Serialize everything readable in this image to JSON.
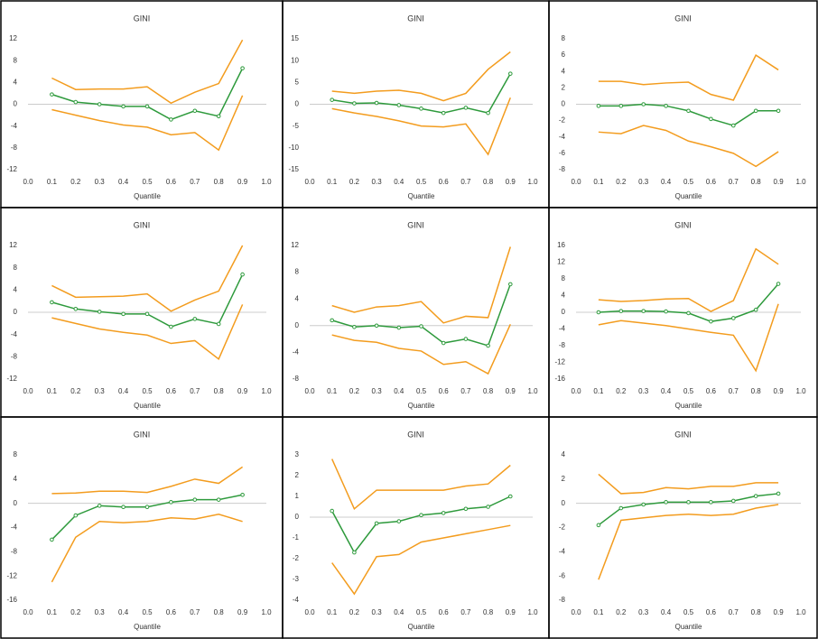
{
  "chart_data": [
    {
      "type": "line",
      "title": "GINI",
      "xlabel": "Quantile",
      "x": [
        0.1,
        0.2,
        0.3,
        0.4,
        0.5,
        0.6,
        0.7,
        0.8,
        0.9
      ],
      "xlim": [
        0,
        1
      ],
      "xticks": [
        {
          "value": 0,
          "label": "0.0"
        },
        0.1,
        0.2,
        0.3,
        0.4,
        0.5,
        0.6,
        0.7,
        0.8,
        0.9,
        {
          "value": 1,
          "label": "1.0"
        }
      ],
      "ylim": [
        -12,
        12
      ],
      "yticks": [
        12,
        8,
        4,
        0,
        -4,
        -8,
        -12
      ],
      "series": [
        {
          "color": "#f39c1e",
          "values": [
            4.8,
            2.7,
            2.8,
            2.8,
            3.2,
            0.2,
            2.2,
            3.8,
            11.8
          ]
        },
        {
          "color": "#2e9a3c",
          "values": [
            1.8,
            0.4,
            0.0,
            -0.4,
            -0.4,
            -2.8,
            -1.2,
            -2.2,
            6.6
          ]
        },
        {
          "color": "#f39c1e",
          "values": [
            -1,
            -2,
            -3,
            -3.8,
            -4.2,
            -5.6,
            -5.2,
            -8.4,
            1.6
          ]
        }
      ]
    },
    {
      "type": "line",
      "title": "GINI",
      "xlabel": "Quantile",
      "x": [
        0.1,
        0.2,
        0.3,
        0.4,
        0.5,
        0.6,
        0.7,
        0.8,
        0.9
      ],
      "xlim": [
        0,
        1
      ],
      "xticks": [
        {
          "value": 0,
          "label": "0.0"
        },
        0.1,
        0.2,
        0.3,
        0.4,
        0.5,
        0.6,
        0.7,
        0.8,
        0.9,
        {
          "value": 1,
          "label": "1.0"
        }
      ],
      "ylim": [
        -15,
        15
      ],
      "yticks": [
        15,
        10,
        5,
        0,
        -5,
        -10,
        -15
      ],
      "series": [
        {
          "color": "#f39c1e",
          "values": [
            3,
            2.5,
            3,
            3.2,
            2.5,
            0.8,
            2.5,
            8,
            12
          ]
        },
        {
          "color": "#2e9a3c",
          "values": [
            1,
            0.2,
            0.3,
            -0.2,
            -1,
            -2,
            -0.8,
            -2,
            7
          ]
        },
        {
          "color": "#f39c1e",
          "values": [
            -1,
            -2,
            -2.8,
            -3.8,
            -5,
            -5.2,
            -4.5,
            -11.5,
            1.5
          ]
        }
      ]
    },
    {
      "type": "line",
      "title": "GINI",
      "xlabel": "Quantile",
      "x": [
        0.1,
        0.2,
        0.3,
        0.4,
        0.5,
        0.6,
        0.7,
        0.8,
        0.9
      ],
      "xlim": [
        0,
        1
      ],
      "xticks": [
        {
          "value": 0,
          "label": "0.0"
        },
        0.1,
        0.2,
        0.3,
        0.4,
        0.5,
        0.6,
        0.7,
        0.8,
        0.9,
        {
          "value": 1,
          "label": "1.0"
        }
      ],
      "ylim": [
        -8,
        8
      ],
      "yticks": [
        8,
        6,
        4,
        2,
        0,
        -2,
        -4,
        -6,
        -8
      ],
      "series": [
        {
          "color": "#f39c1e",
          "values": [
            2.8,
            2.8,
            2.4,
            2.6,
            2.7,
            1.2,
            0.5,
            6,
            4.2
          ]
        },
        {
          "color": "#2e9a3c",
          "values": [
            -0.2,
            -0.2,
            0,
            -0.2,
            -0.8,
            -1.8,
            -2.6,
            -0.8,
            -0.8
          ]
        },
        {
          "color": "#f39c1e",
          "values": [
            -3.4,
            -3.6,
            -2.6,
            -3.2,
            -4.5,
            -5.2,
            -6,
            -7.6,
            -5.8
          ]
        }
      ]
    },
    {
      "type": "line",
      "title": "GINI",
      "xlabel": "Quantile",
      "x": [
        0.1,
        0.2,
        0.3,
        0.4,
        0.5,
        0.6,
        0.7,
        0.8,
        0.9
      ],
      "xlim": [
        0,
        1
      ],
      "xticks": [
        {
          "value": 0,
          "label": "0.0"
        },
        0.1,
        0.2,
        0.3,
        0.4,
        0.5,
        0.6,
        0.7,
        0.8,
        0.9,
        {
          "value": 1,
          "label": "1.0"
        }
      ],
      "ylim": [
        -12,
        12
      ],
      "yticks": [
        12,
        8,
        4,
        0,
        -4,
        -8,
        -12
      ],
      "series": [
        {
          "color": "#f39c1e",
          "values": [
            4.8,
            2.7,
            2.8,
            2.9,
            3.3,
            0.2,
            2.2,
            3.8,
            12
          ]
        },
        {
          "color": "#2e9a3c",
          "values": [
            1.8,
            0.6,
            0.1,
            -0.3,
            -0.3,
            -2.6,
            -1.2,
            -2.1,
            6.8
          ]
        },
        {
          "color": "#f39c1e",
          "values": [
            -1,
            -2,
            -3,
            -3.6,
            -4.1,
            -5.6,
            -5.1,
            -8.4,
            1.4
          ]
        }
      ]
    },
    {
      "type": "line",
      "title": "GINI",
      "xlabel": "Quantile",
      "x": [
        0.1,
        0.2,
        0.3,
        0.4,
        0.5,
        0.6,
        0.7,
        0.8,
        0.9
      ],
      "xlim": [
        0,
        1
      ],
      "xticks": [
        {
          "value": 0,
          "label": "0.0"
        },
        0.1,
        0.2,
        0.3,
        0.4,
        0.5,
        0.6,
        0.7,
        0.8,
        0.9,
        {
          "value": 1,
          "label": "1.0"
        }
      ],
      "ylim": [
        -8,
        12
      ],
      "yticks": [
        12,
        8,
        4,
        0,
        -4,
        -8
      ],
      "series": [
        {
          "color": "#f39c1e",
          "values": [
            3,
            2,
            2.8,
            3,
            3.6,
            0.4,
            1.4,
            1.2,
            11.8
          ]
        },
        {
          "color": "#2e9a3c",
          "values": [
            0.8,
            -0.2,
            0,
            -0.3,
            -0.1,
            -2.6,
            -2,
            -3,
            6.2
          ]
        },
        {
          "color": "#f39c1e",
          "values": [
            -1.4,
            -2.2,
            -2.5,
            -3.4,
            -3.8,
            -5.8,
            -5.4,
            -7.2,
            0.2
          ]
        }
      ]
    },
    {
      "type": "line",
      "title": "GINI",
      "xlabel": "Quantile",
      "x": [
        0.1,
        0.2,
        0.3,
        0.4,
        0.5,
        0.6,
        0.7,
        0.8,
        0.9
      ],
      "xlim": [
        0,
        1
      ],
      "xticks": [
        {
          "value": 0,
          "label": "0.0"
        },
        0.1,
        0.2,
        0.3,
        0.4,
        0.5,
        0.6,
        0.7,
        0.8,
        0.9,
        {
          "value": 1,
          "label": "1.0"
        }
      ],
      "ylim": [
        -16,
        16
      ],
      "yticks": [
        16,
        12,
        8,
        4,
        0,
        -4,
        -8,
        -12,
        -16
      ],
      "series": [
        {
          "color": "#f39c1e",
          "values": [
            3,
            2.6,
            2.8,
            3.2,
            3.3,
            0.2,
            2.8,
            15.2,
            11.5
          ]
        },
        {
          "color": "#2e9a3c",
          "values": [
            0,
            0.3,
            0.3,
            0.2,
            -0.2,
            -2.2,
            -1.4,
            0.6,
            6.8
          ]
        },
        {
          "color": "#f39c1e",
          "values": [
            -3,
            -2,
            -2.6,
            -3.2,
            -4,
            -4.8,
            -5.5,
            -14,
            2
          ]
        }
      ]
    },
    {
      "type": "line",
      "title": "GINI",
      "xlabel": "Quantile",
      "x": [
        0.1,
        0.2,
        0.3,
        0.4,
        0.5,
        0.6,
        0.7,
        0.8,
        0.9
      ],
      "xlim": [
        0,
        1
      ],
      "xticks": [
        {
          "value": 0,
          "label": "0.0"
        },
        0.1,
        0.2,
        0.3,
        0.4,
        0.5,
        0.6,
        0.7,
        0.8,
        0.9,
        {
          "value": 1,
          "label": "1.0"
        }
      ],
      "ylim": [
        -16,
        8
      ],
      "yticks": [
        8,
        4,
        0,
        -4,
        -8,
        -12,
        -16
      ],
      "series": [
        {
          "color": "#f39c1e",
          "values": [
            1.6,
            1.7,
            2,
            2,
            1.8,
            2.8,
            4,
            3.3,
            6
          ]
        },
        {
          "color": "#2e9a3c",
          "values": [
            -6,
            -2,
            -0.4,
            -0.6,
            -0.6,
            0.2,
            0.6,
            0.6,
            1.4
          ]
        },
        {
          "color": "#f39c1e",
          "values": [
            -13,
            -5.6,
            -3,
            -3.2,
            -3,
            -2.4,
            -2.6,
            -1.8,
            -3
          ]
        }
      ]
    },
    {
      "type": "line",
      "title": "GINI",
      "xlabel": "Quantile",
      "x": [
        0.1,
        0.2,
        0.3,
        0.4,
        0.5,
        0.6,
        0.7,
        0.8,
        0.9
      ],
      "xlim": [
        0,
        1
      ],
      "xticks": [
        {
          "value": 0,
          "label": "0.0"
        },
        0.1,
        0.2,
        0.3,
        0.4,
        0.5,
        0.6,
        0.7,
        0.8,
        0.9,
        {
          "value": 1,
          "label": "1.0"
        }
      ],
      "ylim": [
        -4,
        3
      ],
      "yticks": [
        3,
        2,
        1,
        0,
        -1,
        -2,
        -3,
        -4
      ],
      "series": [
        {
          "color": "#f39c1e",
          "values": [
            2.8,
            0.4,
            1.3,
            1.3,
            1.3,
            1.3,
            1.5,
            1.6,
            2.5
          ]
        },
        {
          "color": "#2e9a3c",
          "values": [
            0.3,
            -1.7,
            -0.3,
            -0.2,
            0.1,
            0.2,
            0.4,
            0.5,
            1
          ]
        },
        {
          "color": "#f39c1e",
          "values": [
            -2.2,
            -3.7,
            -1.9,
            -1.8,
            -1.2,
            -1,
            -0.8,
            -0.6,
            -0.4
          ]
        }
      ]
    },
    {
      "type": "line",
      "title": "GINI",
      "xlabel": "Quantile",
      "x": [
        0.1,
        0.2,
        0.3,
        0.4,
        0.5,
        0.6,
        0.7,
        0.8,
        0.9
      ],
      "xlim": [
        0,
        1
      ],
      "xticks": [
        {
          "value": 0,
          "label": "0.0"
        },
        0.1,
        0.2,
        0.3,
        0.4,
        0.5,
        0.6,
        0.7,
        0.8,
        0.9,
        {
          "value": 1,
          "label": "1.0"
        }
      ],
      "ylim": [
        -8,
        4
      ],
      "yticks": [
        4,
        2,
        0,
        -2,
        -4,
        -6,
        -8
      ],
      "series": [
        {
          "color": "#f39c1e",
          "values": [
            2.4,
            0.8,
            0.9,
            1.3,
            1.2,
            1.4,
            1.4,
            1.7,
            1.7
          ]
        },
        {
          "color": "#2e9a3c",
          "values": [
            -1.8,
            -0.4,
            -0.1,
            0.1,
            0.1,
            0.1,
            0.2,
            0.6,
            0.8
          ]
        },
        {
          "color": "#f39c1e",
          "values": [
            -6.3,
            -1.4,
            -1.2,
            -1,
            -0.9,
            -1,
            -0.9,
            -0.4,
            -0.1
          ]
        }
      ]
    }
  ]
}
